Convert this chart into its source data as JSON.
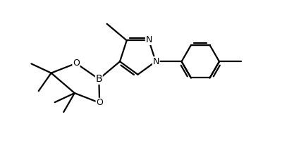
{
  "bg_color": "#ffffff",
  "line_color": "#000000",
  "line_width": 1.6,
  "font_size": 9,
  "fig_width": 4.34,
  "fig_height": 2.27,
  "dpi": 100,
  "xlim": [
    0,
    10
  ],
  "ylim": [
    0,
    5.2
  ]
}
